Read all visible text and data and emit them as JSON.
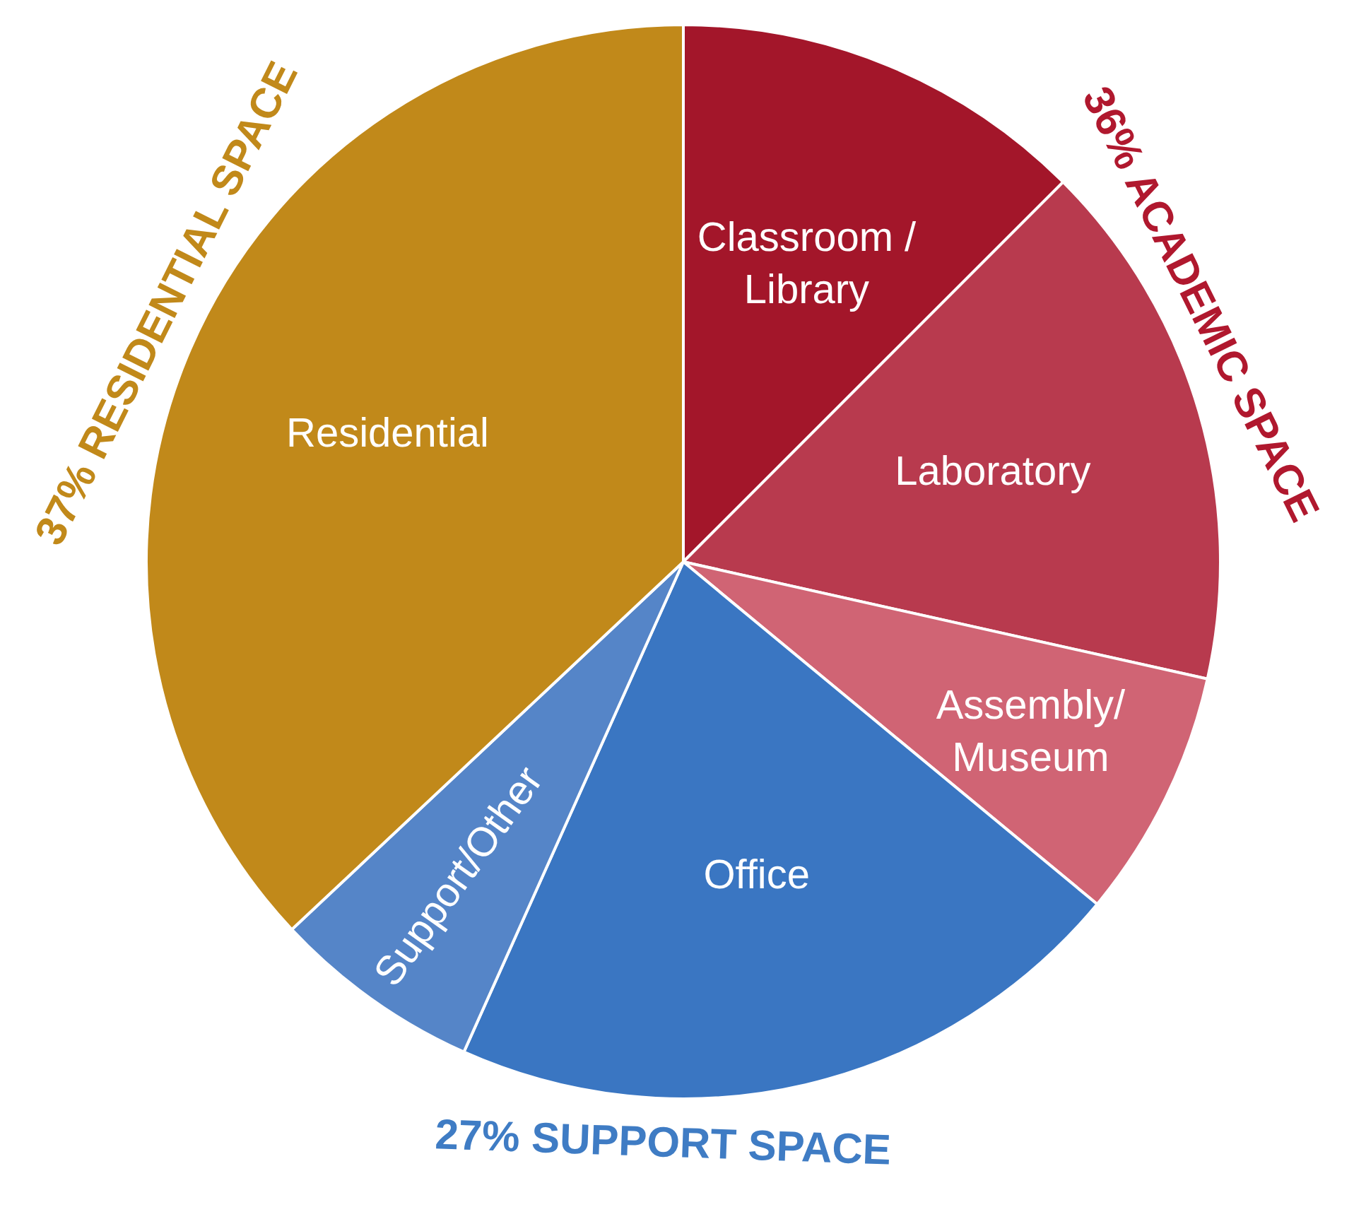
{
  "chart_data": {
    "type": "pie",
    "categories": [
      "Classroom /\nLibrary",
      "Laboratory",
      "Assembly/\nMuseum",
      "Office",
      "Support/Other",
      "Residential"
    ],
    "values": [
      12.5,
      16,
      7.5,
      20.7,
      6.3,
      37
    ],
    "colors": [
      "#a3162a",
      "#b83a4e",
      "#d06474",
      "#3a76c2",
      "#5585c8",
      "#c1891a"
    ],
    "annotations": [
      "36% ACADEMIC SPACE",
      "27% SUPPORT SPACE",
      "37% RESIDENTIAL SPACE"
    ]
  }
}
